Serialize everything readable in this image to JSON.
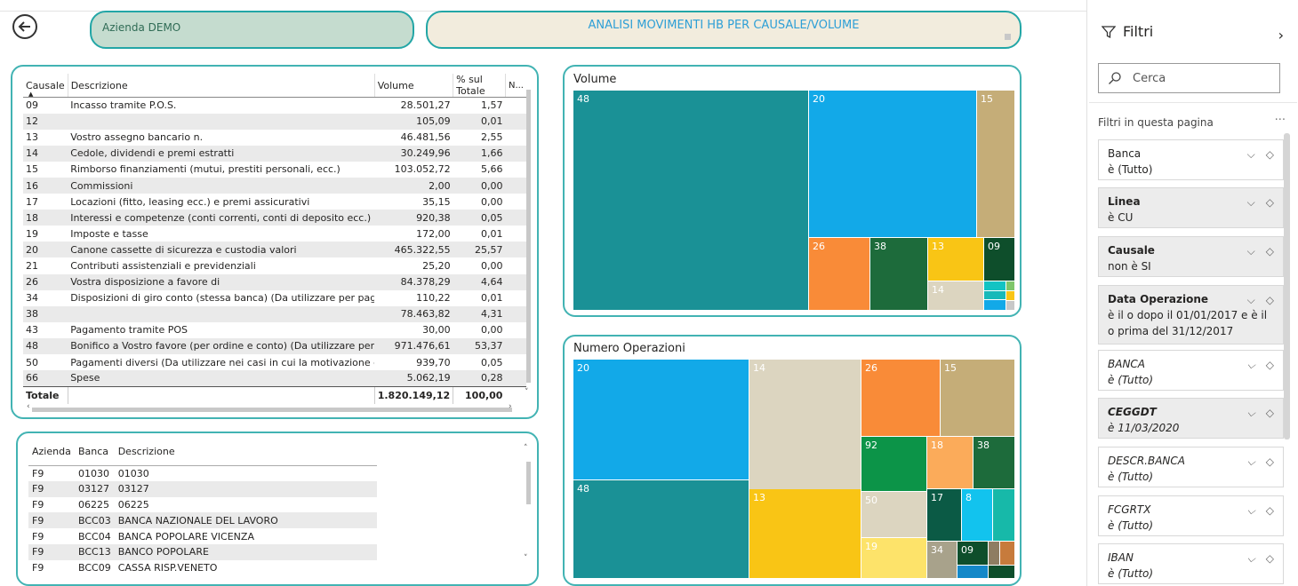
{
  "header": {
    "company": "Azienda DEMO",
    "report_title": "ANALISI MOVIMENTI HB PER CAUSALE/VOLUME"
  },
  "causali_table": {
    "columns": [
      "Causale",
      "Descrizione",
      "Volume",
      "% sul Totale",
      "N..."
    ],
    "rows": [
      {
        "causale": "09",
        "descrizione": "Incasso tramite P.O.S.",
        "volume": "28.501,27",
        "perc": "1,57"
      },
      {
        "causale": "12",
        "descrizione": "",
        "volume": "105,09",
        "perc": "0,01"
      },
      {
        "causale": "13",
        "descrizione": "Vostro assegno bancario n.",
        "volume": "46.481,56",
        "perc": "2,55"
      },
      {
        "causale": "14",
        "descrizione": "Cedole, dividendi e premi estratti",
        "volume": "30.249,96",
        "perc": "1,66"
      },
      {
        "causale": "15",
        "descrizione": "Rimborso finanziamenti (mutui, prestiti personali, ecc.)",
        "volume": "103.052,72",
        "perc": "5,66"
      },
      {
        "causale": "16",
        "descrizione": "Commissioni",
        "volume": "2,00",
        "perc": "0,00"
      },
      {
        "causale": "17",
        "descrizione": "Locazioni (fitto, leasing ecc.) e premi assicurativi",
        "volume": "35,15",
        "perc": "0,00"
      },
      {
        "causale": "18",
        "descrizione": "Interessi e competenze (conti correnti, conti di deposito ecc.)",
        "volume": "920,38",
        "perc": "0,05"
      },
      {
        "causale": "19",
        "descrizione": "Imposte e tasse",
        "volume": "172,00",
        "perc": "0,01"
      },
      {
        "causale": "20",
        "descrizione": "Canone cassette di sicurezza e custodia valori",
        "volume": "465.322,55",
        "perc": "25,57"
      },
      {
        "causale": "21",
        "descrizione": "Contributi assistenziali e previdenziali",
        "volume": "25,20",
        "perc": "0,00"
      },
      {
        "causale": "26",
        "descrizione": "Vostra disposizione a favore di",
        "volume": "84.378,29",
        "perc": "4,64"
      },
      {
        "causale": "34",
        "descrizione": "Disposizioni di giro conto (stessa banca) (Da utilizzare per paga",
        "volume": "110,22",
        "perc": "0,01"
      },
      {
        "causale": "38",
        "descrizione": "",
        "volume": "78.463,82",
        "perc": "4,31"
      },
      {
        "causale": "43",
        "descrizione": "Pagamento tramite POS",
        "volume": "30,00",
        "perc": "0,00"
      },
      {
        "causale": "48",
        "descrizione": "Bonifico a Vostro favore (per ordine e conto) (Da utilizzare per",
        "volume": "971.476,61",
        "perc": "53,37"
      },
      {
        "causale": "50",
        "descrizione": "Pagamenti diversi (Da utilizzare nei casi in cui la motivazione d",
        "volume": "939,70",
        "perc": "0,05"
      },
      {
        "causale": "66",
        "descrizione": "Spese",
        "volume": "5.062,19",
        "perc": "0,28"
      }
    ],
    "total_label": "Totale",
    "total_volume": "1.820.149,12",
    "total_perc": "100,00"
  },
  "banche_table": {
    "columns": [
      "Azienda",
      "Banca",
      "Descrizione"
    ],
    "rows": [
      {
        "azienda": "F9",
        "banca": "01030",
        "descrizione": "01030"
      },
      {
        "azienda": "F9",
        "banca": "03127",
        "descrizione": "03127"
      },
      {
        "azienda": "F9",
        "banca": "06225",
        "descrizione": "06225"
      },
      {
        "azienda": "F9",
        "banca": "BCC03",
        "descrizione": "BANCA NAZIONALE DEL LAVORO"
      },
      {
        "azienda": "F9",
        "banca": "BCC04",
        "descrizione": "BANCA POPOLARE VICENZA"
      },
      {
        "azienda": "F9",
        "banca": "BCC13",
        "descrizione": "BANCO POPOLARE"
      },
      {
        "azienda": "F9",
        "banca": "BCC09",
        "descrizione": "CASSA RISP.VENETO"
      }
    ]
  },
  "chart_data": [
    {
      "type": "heatmap",
      "title": "Volume",
      "cells": [
        {
          "label": "48",
          "value": 971476.61,
          "color": "#1a9196"
        },
        {
          "label": "20",
          "value": 465322.55,
          "color": "#12a9e8"
        },
        {
          "label": "15",
          "value": 103052.72,
          "color": "#c5ad78"
        },
        {
          "label": "26",
          "value": 84378.29,
          "color": "#f98b38"
        },
        {
          "label": "38",
          "value": 78463.82,
          "color": "#1d6b3b"
        },
        {
          "label": "13",
          "value": 46481.56,
          "color": "#f9c515"
        },
        {
          "label": "09",
          "value": 28501.27,
          "color": "#0e4e2b"
        },
        {
          "label": "14",
          "value": 30249.96,
          "color": "#dcd5c0"
        }
      ]
    },
    {
      "type": "heatmap",
      "title": "Numero Operazioni",
      "cells": [
        {
          "label": "20",
          "color": "#12a9e8"
        },
        {
          "label": "14",
          "color": "#dcd5c0"
        },
        {
          "label": "26",
          "color": "#f98b38"
        },
        {
          "label": "15",
          "color": "#c5ad78"
        },
        {
          "label": "48",
          "color": "#1a9196"
        },
        {
          "label": "13",
          "color": "#f9c515"
        },
        {
          "label": "92",
          "color": "#0c9448"
        },
        {
          "label": "18",
          "color": "#fbab5a"
        },
        {
          "label": "38",
          "color": "#1d6b3b"
        },
        {
          "label": "50",
          "color": "#dcd5c0"
        },
        {
          "label": "17",
          "color": "#0b5a45"
        },
        {
          "label": "8",
          "color": "#12c3ee"
        },
        {
          "label": "19",
          "color": "#fde36a"
        },
        {
          "label": "34",
          "color": "#a8a28b"
        },
        {
          "label": "09",
          "color": "#0e4e2b"
        }
      ]
    }
  ],
  "filters": {
    "title": "Filtri",
    "search_placeholder": "Cerca",
    "page_filters_label": "Filtri in questa pagina",
    "items": [
      {
        "name": "Banca",
        "value": "è (Tutto)"
      },
      {
        "name": "Linea",
        "value": "è CU"
      },
      {
        "name": "Causale",
        "value": "non è SI"
      },
      {
        "name": "Data Operazione",
        "value": "è il o dopo il 01/01/2017 e è il o prima del 31/12/2017"
      },
      {
        "name": "BANCA",
        "value": "è (Tutto)"
      },
      {
        "name": "CEGGDT",
        "value": "è 11/03/2020"
      },
      {
        "name": "DESCR.BANCA",
        "value": "è (Tutto)"
      },
      {
        "name": "FCGRTX",
        "value": "è (Tutto)"
      },
      {
        "name": "IBAN",
        "value": "è (Tutto)"
      }
    ]
  }
}
